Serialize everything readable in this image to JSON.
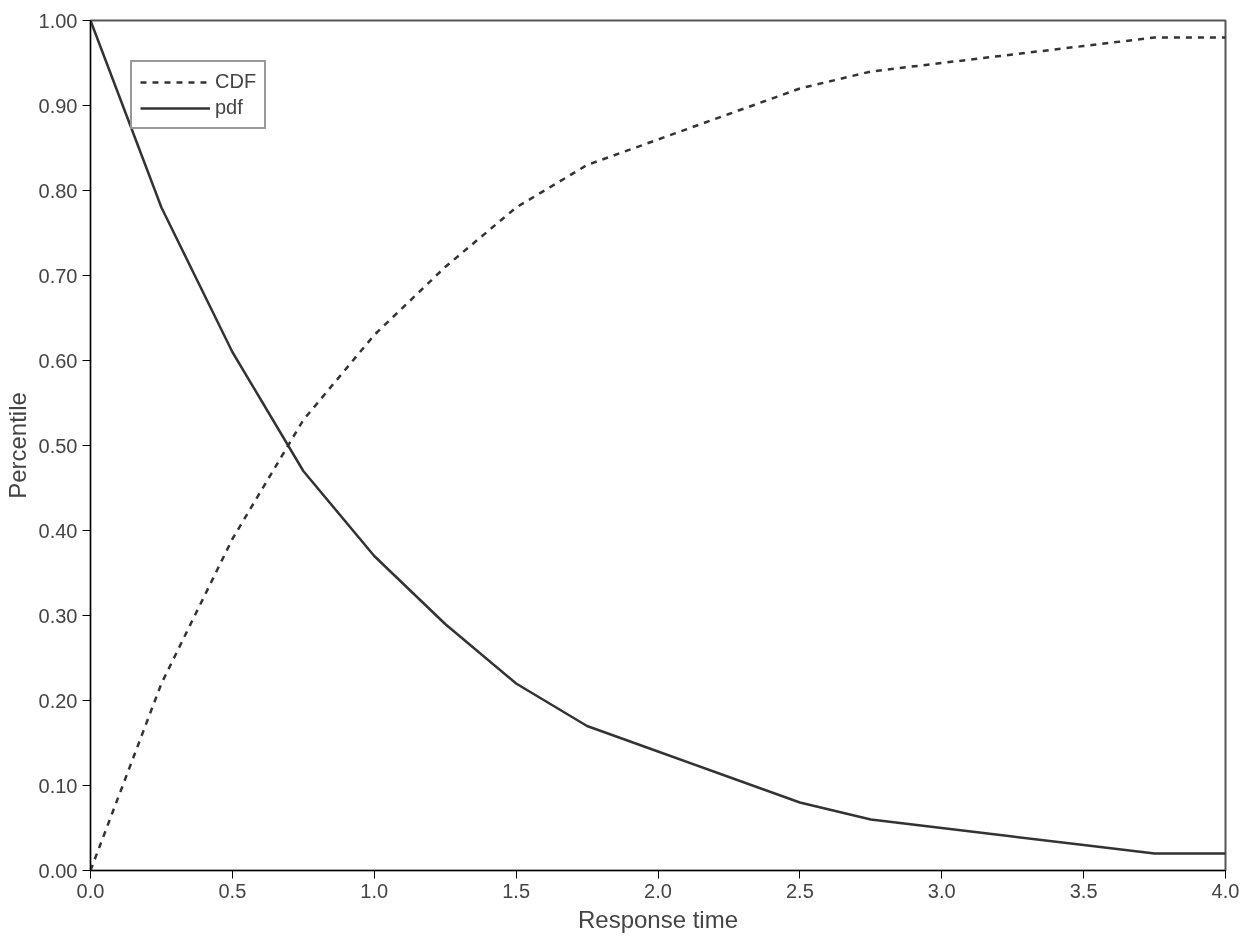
{
  "chart_data": {
    "type": "line",
    "xlabel": "Response time",
    "ylabel": "Percentile",
    "x": [
      0,
      0.25,
      0.5,
      0.75,
      1,
      1.25,
      1.5,
      1.75,
      2,
      2.25,
      2.5,
      2.75,
      3,
      3.25,
      3.5,
      3.75,
      4
    ],
    "series": [
      {
        "name": "CDF",
        "color": "#333333",
        "line_style": "dashed",
        "values": [
          0.0,
          0.22,
          0.39,
          0.53,
          0.63,
          0.71,
          0.78,
          0.83,
          0.86,
          0.89,
          0.92,
          0.94,
          0.95,
          0.96,
          0.97,
          0.98,
          0.98
        ]
      },
      {
        "name": "pdf",
        "color": "#333333",
        "line_style": "solid",
        "values": [
          1.0,
          0.78,
          0.61,
          0.47,
          0.37,
          0.29,
          0.22,
          0.17,
          0.14,
          0.11,
          0.08,
          0.06,
          0.05,
          0.04,
          0.03,
          0.02,
          0.02
        ]
      }
    ],
    "xlim": [
      0,
      4
    ],
    "ylim": [
      0,
      1
    ],
    "xticks": [
      {
        "value": 0,
        "label": "0.0"
      },
      {
        "value": 0.5,
        "label": "0.5"
      },
      {
        "value": 1,
        "label": "1.0"
      },
      {
        "value": 1.5,
        "label": "1.5"
      },
      {
        "value": 2,
        "label": "2.0"
      },
      {
        "value": 2.5,
        "label": "2.5"
      },
      {
        "value": 3,
        "label": "3.0"
      },
      {
        "value": 3.5,
        "label": "3.5"
      },
      {
        "value": 4,
        "label": "4.0"
      }
    ],
    "yticks": [
      {
        "value": 0,
        "label": "0.00"
      },
      {
        "value": 0.1,
        "label": "0.10"
      },
      {
        "value": 0.2,
        "label": "0.20"
      },
      {
        "value": 0.3,
        "label": "0.30"
      },
      {
        "value": 0.4,
        "label": "0.40"
      },
      {
        "value": 0.5,
        "label": "0.50"
      },
      {
        "value": 0.6,
        "label": "0.60"
      },
      {
        "value": 0.7,
        "label": "0.70"
      },
      {
        "value": 0.8,
        "label": "0.80"
      },
      {
        "value": 0.9,
        "label": "0.90"
      },
      {
        "value": 1,
        "label": "1.00"
      }
    ],
    "grid": false,
    "legend": "top left",
    "marker": "none"
  }
}
